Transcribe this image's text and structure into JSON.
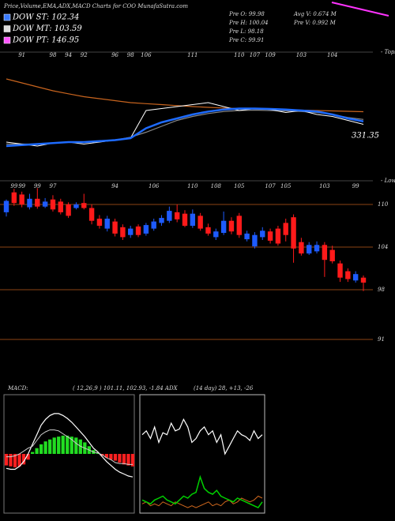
{
  "header": {
    "title": "Price,Volume,EMA,ADX,MACD Charts for COO MunafaSutra.com",
    "legend": [
      {
        "text": "DOW ST: 102.34",
        "color": "#3a7bff"
      },
      {
        "text": "DOW MT: 103.59",
        "color": "#dddddd"
      },
      {
        "text": "DOW PT: 146.95",
        "color": "#ff55ff"
      }
    ],
    "stats": [
      [
        "Pre  O: 99.98",
        "Pre  H: 100.04",
        "Pre  L: 98.18",
        "Pre  C: 99.91"
      ],
      [
        "Avg V: 0.674  M",
        "Pre  V: 0.992  M"
      ]
    ],
    "macd_title": "MACD:",
    "macd_text": "( 12,26,9 ) 101.11, 102.93, -1.84 ADX",
    "adx_text": "(14  day) 28, +13, -26"
  },
  "chart_data": [
    {
      "type": "candlestick",
      "panel_label": "- Lows",
      "categories": [
        null,
        "99",
        "99",
        null,
        "99",
        null,
        "97",
        null,
        null,
        null,
        null,
        null,
        null,
        null,
        "94",
        null,
        null,
        null,
        null,
        "106",
        null,
        null,
        null,
        null,
        "110",
        null,
        null,
        "108",
        null,
        null,
        "105",
        null,
        null,
        null,
        "107",
        null,
        "105",
        null,
        null,
        null,
        null,
        "103",
        null,
        null,
        null,
        "99",
        null
      ],
      "open": [
        108.9,
        111.7,
        111.4,
        109.6,
        110.8,
        109.7,
        110.7,
        110.4,
        110.0,
        109.5,
        110.2,
        109.5,
        108.0,
        106.6,
        107.6,
        106.8,
        105.7,
        106.9,
        105.9,
        106.6,
        107.4,
        107.7,
        108.9,
        108.7,
        107.0,
        108.4,
        106.8,
        105.4,
        106.0,
        107.7,
        108.4,
        105.1,
        104.1,
        105.4,
        106.2,
        106.6,
        107.4,
        108.2,
        104.7,
        103.1,
        103.4,
        104.3,
        103.6,
        101.7,
        100.6,
        99.3,
        99.7
      ],
      "high": [
        110.7,
        112.2,
        111.8,
        111.5,
        112.3,
        110.9,
        111.3,
        110.8,
        110.3,
        110.3,
        111.5,
        110.0,
        108.5,
        108.4,
        108.0,
        107.2,
        107.0,
        107.2,
        107.4,
        108.0,
        108.5,
        109.7,
        110.0,
        109.2,
        109.3,
        108.8,
        107.3,
        106.6,
        109.0,
        108.2,
        108.8,
        106.3,
        106.1,
        106.8,
        106.6,
        107.0,
        108.0,
        108.6,
        105.3,
        104.7,
        104.8,
        104.7,
        104.2,
        102.1,
        101.0,
        100.6,
        100.0
      ],
      "low": [
        108.3,
        109.8,
        109.6,
        109.3,
        109.4,
        109.5,
        109.0,
        108.6,
        108.1,
        109.3,
        109.3,
        107.2,
        106.6,
        106.2,
        105.5,
        105.0,
        105.3,
        105.4,
        105.6,
        106.3,
        107.0,
        107.4,
        107.5,
        106.8,
        106.7,
        106.3,
        105.6,
        105.0,
        105.7,
        105.8,
        105.3,
        104.8,
        103.8,
        105.0,
        104.5,
        104.2,
        104.8,
        101.8,
        102.8,
        102.9,
        103.1,
        99.8,
        101.7,
        99.1,
        99.1,
        99.0,
        97.8
      ],
      "close": [
        110.5,
        110.2,
        110.0,
        110.8,
        109.7,
        110.4,
        109.3,
        108.9,
        108.4,
        110.0,
        109.5,
        107.7,
        107.0,
        108.0,
        105.9,
        105.4,
        106.6,
        105.7,
        107.1,
        107.6,
        108.1,
        109.1,
        107.9,
        107.0,
        108.7,
        106.6,
        105.9,
        106.2,
        107.7,
        106.2,
        105.7,
        105.9,
        105.7,
        106.3,
        104.9,
        104.5,
        105.7,
        103.8,
        103.1,
        104.3,
        104.3,
        102.2,
        102.0,
        99.7,
        99.5,
        100.2,
        99.0
      ],
      "up_color": "#1e5bff",
      "down_color": "#ff1a1a",
      "grid_color": "#8b4513",
      "ylim": [
        86,
        113
      ],
      "yticks": [
        91,
        98,
        104,
        110
      ],
      "grid": true
    },
    {
      "type": "line",
      "panel_label": "- Tops",
      "annotation": "331.35",
      "categories": [
        null,
        "91",
        null,
        "98",
        "94",
        "92",
        null,
        "96",
        "98",
        "106",
        null,
        null,
        "111",
        null,
        null,
        "110",
        "107",
        "109",
        null,
        "103",
        null,
        "104",
        null,
        null
      ],
      "series": [
        {
          "color": "#c8641e",
          "line_width": 1.2,
          "values": [
            120,
            118,
            116,
            114,
            112.5,
            111,
            110,
            109,
            108,
            107.5,
            107,
            106.5,
            106,
            105.6,
            105.3,
            105,
            104.8,
            104.6,
            104.4,
            104.2,
            104,
            103.8,
            103.6,
            103.4
          ]
        },
        {
          "color": "#888888",
          "line_width": 1.2,
          "values": [
            87,
            87,
            87,
            87.5,
            88,
            88,
            88.5,
            89,
            90.5,
            93,
            96,
            99,
            101,
            102.5,
            103.5,
            104,
            104.2,
            104,
            103.8,
            103.5,
            103,
            102,
            100.5,
            99.5
          ]
        },
        {
          "color": "#ffffff",
          "line_width": 1,
          "values": [
            88,
            87,
            86,
            87.5,
            88,
            87,
            88,
            89,
            90,
            104,
            105,
            106,
            107,
            108,
            106,
            104,
            105,
            104.5,
            103,
            104,
            102,
            101,
            99,
            97
          ]
        },
        {
          "color": "#1e6bff",
          "line_width": 2.5,
          "values": [
            86,
            86.5,
            87,
            87.5,
            88,
            88,
            88.5,
            89,
            90,
            95,
            98,
            100,
            102,
            103.5,
            104.5,
            105,
            105,
            104.8,
            104.5,
            104,
            103.5,
            102,
            100,
            98.5
          ]
        }
      ],
      "ylim": [
        80,
        130
      ]
    },
    {
      "type": "macd",
      "histogram": [
        -1.2,
        -1.3,
        -1.4,
        -1.3,
        -1.1,
        -0.6,
        0.2,
        0.6,
        1.0,
        1.3,
        1.5,
        1.7,
        1.8,
        1.9,
        1.9,
        1.8,
        1.7,
        1.5,
        1.2,
        0.8,
        0.4,
        0.1,
        -0.2,
        -0.4,
        -0.6,
        -0.7,
        -0.9,
        -1.1,
        -1.2,
        -1.3
      ],
      "positive_color": "#22dd22",
      "negative_color": "#ff2020",
      "series": [
        {
          "color": "#ffffff",
          "line_width": 1.2,
          "values": [
            -1.5,
            -1.6,
            -1.6,
            -1.3,
            -0.8,
            0,
            1,
            2,
            3,
            3.6,
            4,
            4.2,
            4.2,
            4,
            3.7,
            3.3,
            2.8,
            2.3,
            1.8,
            1.2,
            0.6,
            0.2,
            -0.3,
            -0.8,
            -1.2,
            -1.6,
            -1.9,
            -2.1,
            -2.3,
            -2.4
          ]
        },
        {
          "color": "#cccccc",
          "line_width": 1,
          "values": [
            -0.3,
            -0.3,
            -0.2,
            0,
            0.3,
            0.6,
            0.8,
            1.4,
            2,
            2.3,
            2.5,
            2.5,
            2.4,
            2.1,
            1.8,
            1.5,
            1.1,
            0.8,
            0.6,
            0.4,
            0.2,
            0.1,
            -0.1,
            -0.4,
            -0.6,
            -0.9,
            -1,
            -1,
            -1.1,
            -1.1
          ]
        }
      ],
      "ylim": [
        -6,
        6
      ]
    },
    {
      "type": "line",
      "series": [
        {
          "color": "#ffffff",
          "line_width": 1.2,
          "values": [
            40,
            42,
            38,
            44,
            36,
            41,
            40,
            46,
            42,
            43,
            48,
            44,
            36,
            38,
            42,
            44,
            40,
            42,
            36,
            40,
            30,
            34,
            38,
            42,
            40,
            39,
            37,
            42,
            38,
            40
          ]
        },
        {
          "color": "#d2691e",
          "line_width": 1,
          "values": [
            4,
            5,
            3,
            4,
            3,
            5,
            4,
            3,
            5,
            4,
            3,
            2,
            3,
            2,
            3,
            4,
            5,
            3,
            4,
            3,
            5,
            6,
            4,
            5,
            7,
            6,
            5,
            6,
            8,
            7
          ]
        },
        {
          "color": "#00d000",
          "line_width": 1.5,
          "values": [
            6,
            5,
            4,
            6,
            7,
            8,
            6,
            5,
            4,
            6,
            8,
            7,
            9,
            10,
            18,
            12,
            10,
            9,
            11,
            8,
            7,
            6,
            5,
            7,
            6,
            5,
            4,
            3,
            2,
            5
          ]
        }
      ],
      "ylim": [
        0,
        60
      ]
    }
  ]
}
